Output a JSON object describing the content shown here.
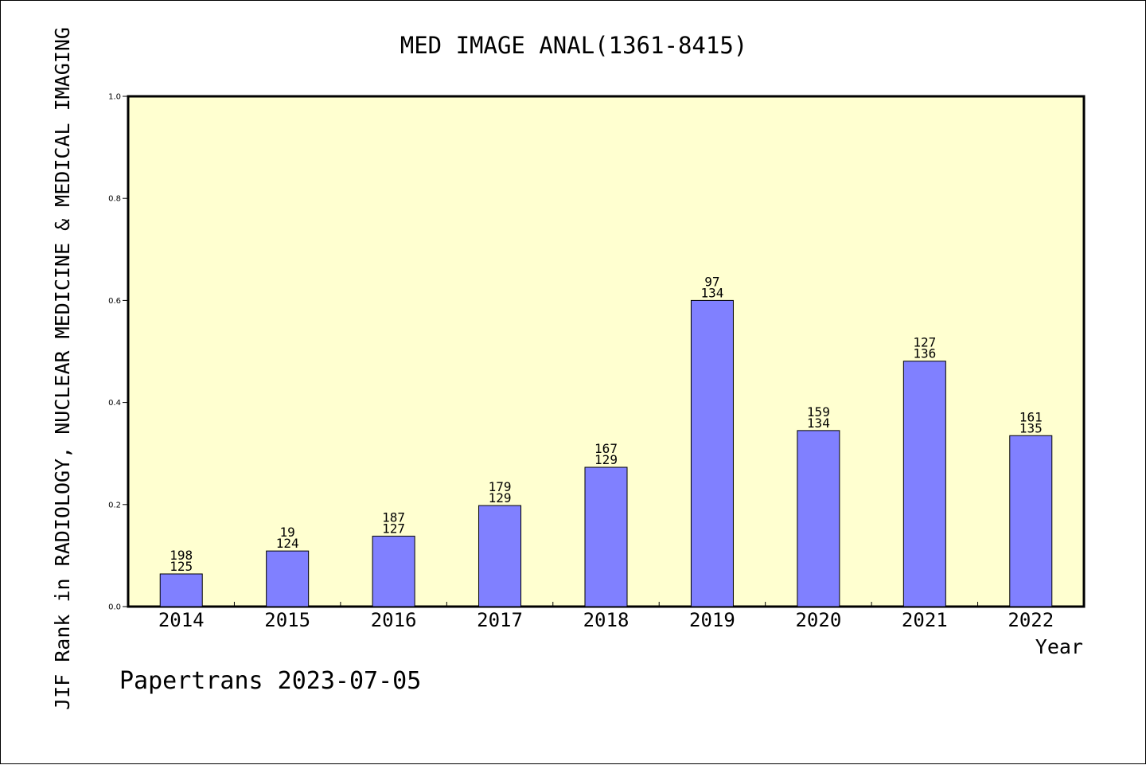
{
  "chart_data": {
    "type": "bar",
    "title": "MED IMAGE ANAL(1361-8415)",
    "xlabel": "Year",
    "ylabel": "JIF Rank in RADIOLOGY, NUCLEAR MEDICINE & MEDICAL IMAGING",
    "categories": [
      "2014",
      "2015",
      "2016",
      "2017",
      "2018",
      "2019",
      "2020",
      "2021",
      "2022"
    ],
    "values": [
      0.064,
      0.109,
      0.138,
      0.198,
      0.273,
      0.6,
      0.345,
      0.481,
      0.335
    ],
    "rank": [
      "198",
      "19",
      "187",
      "179",
      "167",
      "97",
      "159",
      "127",
      "161"
    ],
    "total": [
      "125",
      "124",
      "127",
      "129",
      "129",
      "134",
      "134",
      "136",
      "135"
    ],
    "ylim": [
      0,
      1.0
    ],
    "yticks": [
      "0.0",
      "0.2",
      "0.4",
      "0.6",
      "0.8",
      "1.0"
    ],
    "grid": false,
    "plot_background": "#ffffd0",
    "bar_color": "#8080ff"
  },
  "footer": {
    "credit": "Papertrans 2023-07-05"
  }
}
